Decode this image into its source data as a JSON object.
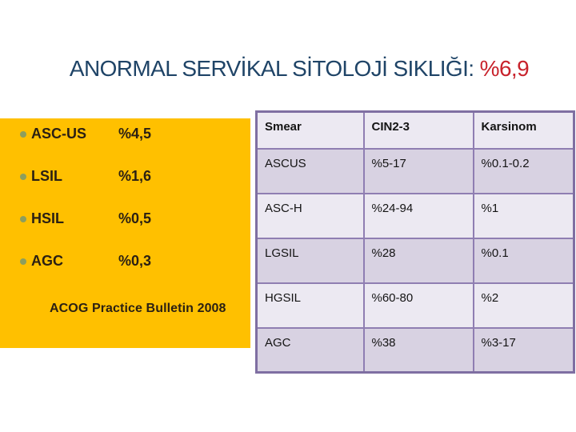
{
  "title": {
    "main": "ANORMAL SERVİKAL SİTOLOJİ SIKLIĞI: ",
    "highlight": "%6,9"
  },
  "panel": {
    "items": [
      {
        "label": "ASC-US",
        "value": "%4,5"
      },
      {
        "label": "LSIL",
        "value": "%1,6"
      },
      {
        "label": "HSIL",
        "value": "%0,5"
      },
      {
        "label": "AGC",
        "value": "%0,3"
      }
    ],
    "source": "ACOG Practice Bulletin 2008"
  },
  "table": {
    "headers": [
      "Smear",
      "CIN2-3",
      "Karsinom"
    ],
    "rows": [
      [
        "ASCUS",
        "%5-17",
        "%0.1-0.2"
      ],
      [
        "ASC-H",
        "%24-94",
        "%1"
      ],
      [
        "LGSIL",
        "%28",
        "%0.1"
      ],
      [
        "HGSIL",
        "%60-80",
        "%2"
      ],
      [
        "AGC",
        "%38",
        "%3-17"
      ]
    ]
  },
  "colors": {
    "title_blue": "#1F4467",
    "title_red": "#C8232C",
    "panel_gold": "#FFC000",
    "bullet_olive": "#8C9E5E",
    "panel_text": "#2B2013",
    "table_border": "#8F7EB2",
    "table_row_light": "#ECE9F2",
    "table_row_dark": "#D8D2E2"
  }
}
